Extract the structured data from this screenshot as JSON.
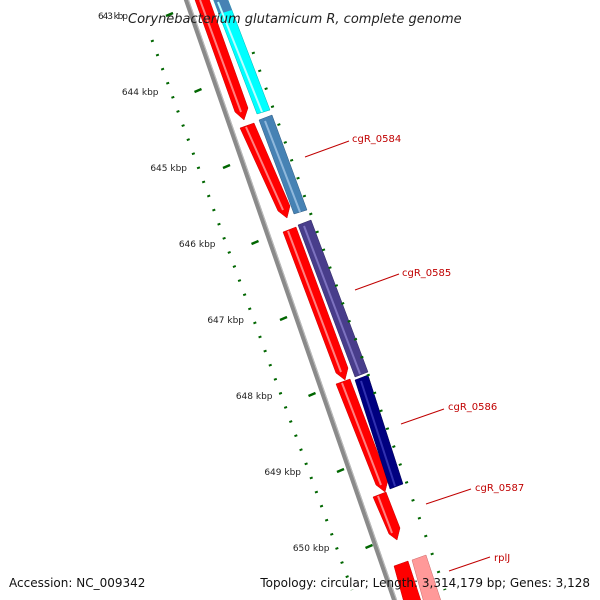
{
  "title": "Corynebacterium glutamicum R, complete genome",
  "ticks": [
    {
      "kbp": 643,
      "label": "643 kbp"
    },
    {
      "kbp": 644,
      "label": "644 kbp"
    },
    {
      "kbp": 645,
      "label": "645 kbp"
    },
    {
      "kbp": 646,
      "label": "646 kbp"
    },
    {
      "kbp": 647,
      "label": "647 kbp"
    },
    {
      "kbp": 648,
      "label": "648 kbp"
    },
    {
      "kbp": 649,
      "label": "649 kbp"
    },
    {
      "kbp": 650,
      "label": "650 kbp"
    }
  ],
  "gene_labels": [
    {
      "text": "cgR_0584"
    },
    {
      "text": "cgR_0585"
    },
    {
      "text": "cgR_0586"
    },
    {
      "text": "cgR_0587"
    },
    {
      "text": "rplJ"
    }
  ],
  "colors": {
    "cds_forward": "#ff0000",
    "tick": "#006600",
    "backbone": "#808080",
    "label": "#c00000",
    "gene_cyan": "#00ffff",
    "gene_steel": "#4682b4",
    "gene_slate": "#483d8b",
    "gene_navy": "#000080",
    "gene_pink": "#ff9999"
  },
  "footer": {
    "accession": "Accession: NC_009342",
    "summary": "Topology: circular; Length: 3,314,179 bp; Genes: 3,128"
  }
}
